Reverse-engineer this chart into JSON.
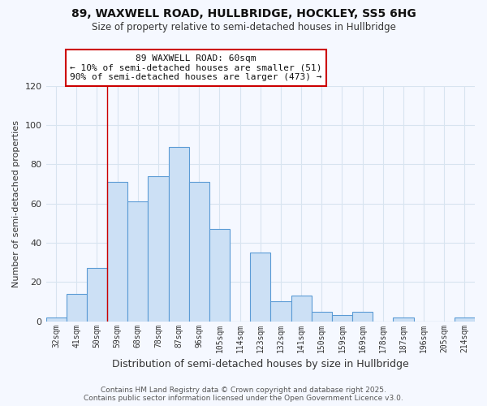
{
  "title1": "89, WAXWELL ROAD, HULLBRIDGE, HOCKLEY, SS5 6HG",
  "title2": "Size of property relative to semi-detached houses in Hullbridge",
  "xlabel": "Distribution of semi-detached houses by size in Hullbridge",
  "ylabel": "Number of semi-detached properties",
  "categories": [
    "32sqm",
    "41sqm",
    "50sqm",
    "59sqm",
    "68sqm",
    "78sqm",
    "87sqm",
    "96sqm",
    "105sqm",
    "114sqm",
    "123sqm",
    "132sqm",
    "141sqm",
    "150sqm",
    "159sqm",
    "169sqm",
    "178sqm",
    "187sqm",
    "196sqm",
    "205sqm",
    "214sqm"
  ],
  "values": [
    2,
    14,
    27,
    71,
    61,
    74,
    89,
    71,
    47,
    0,
    35,
    10,
    13,
    5,
    3,
    5,
    0,
    2,
    0,
    0,
    2
  ],
  "bar_color": "#cce0f5",
  "bar_edge_color": "#5b9bd5",
  "background_color": "#f5f8ff",
  "grid_color": "#d8e4f0",
  "annotation_text": "89 WAXWELL ROAD: 60sqm\n← 10% of semi-detached houses are smaller (51)\n90% of semi-detached houses are larger (473) →",
  "annotation_box_color": "#ffffff",
  "annotation_box_edge": "#cc0000",
  "vline_x": 2.5,
  "ylim": [
    0,
    120
  ],
  "yticks": [
    0,
    20,
    40,
    60,
    80,
    100,
    120
  ],
  "footer": "Contains HM Land Registry data © Crown copyright and database right 2025.\nContains public sector information licensed under the Open Government Licence v3.0."
}
